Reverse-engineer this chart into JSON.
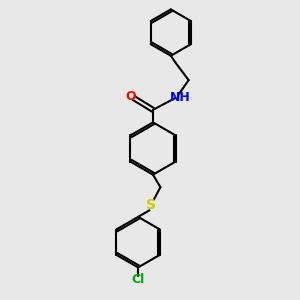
{
  "bg_color": "#e8e8e8",
  "bond_color": "#000000",
  "bond_width": 1.5,
  "atom_colors": {
    "O": "#ff0000",
    "N": "#0000ff",
    "S": "#cccc00",
    "Cl": "#00aa00",
    "C": "#000000",
    "H": "#000000"
  },
  "font_size": 8,
  "fig_size": [
    3.0,
    3.0
  ],
  "dpi": 100
}
